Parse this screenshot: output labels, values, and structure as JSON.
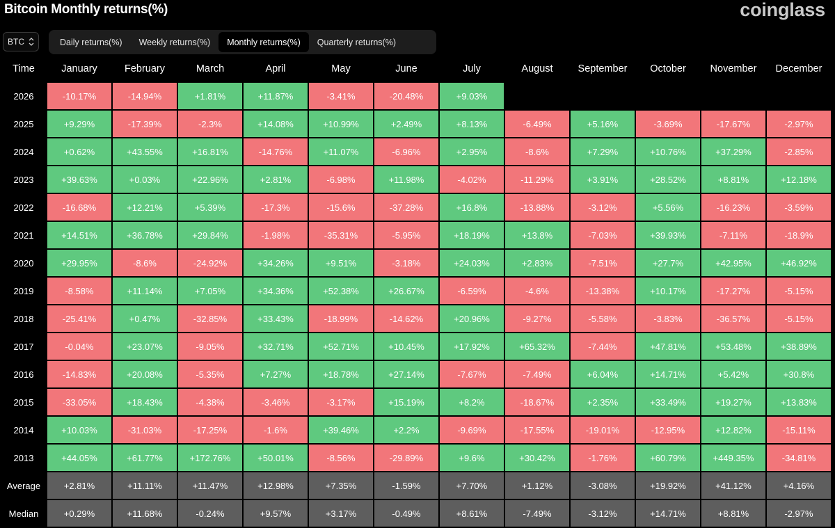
{
  "header": {
    "title": "Bitcoin Monthly returns(%)",
    "brand": "coinglass"
  },
  "asset_selector": {
    "value": "BTC"
  },
  "tabs": [
    {
      "label": "Daily returns(%)",
      "active": false
    },
    {
      "label": "Weekly returns(%)",
      "active": false
    },
    {
      "label": "Monthly returns(%)",
      "active": true
    },
    {
      "label": "Quarterly returns(%)",
      "active": false
    }
  ],
  "colors": {
    "positive": "#5fc97f",
    "negative": "#f2767a",
    "summary": "#5e5e5e"
  },
  "table": {
    "columns": [
      "Time",
      "January",
      "February",
      "March",
      "April",
      "May",
      "June",
      "July",
      "August",
      "September",
      "October",
      "November",
      "December"
    ],
    "rows": [
      {
        "year": "2026",
        "values": [
          "-10.17%",
          "-14.94%",
          "+1.81%",
          "+11.87%",
          "-3.41%",
          "-20.48%",
          "+9.03%",
          "",
          "",
          "",
          "",
          ""
        ]
      },
      {
        "year": "2025",
        "values": [
          "+9.29%",
          "-17.39%",
          "-2.3%",
          "+14.08%",
          "+10.99%",
          "+2.49%",
          "+8.13%",
          "-6.49%",
          "+5.16%",
          "-3.69%",
          "-17.67%",
          "-2.97%"
        ]
      },
      {
        "year": "2024",
        "values": [
          "+0.62%",
          "+43.55%",
          "+16.81%",
          "-14.76%",
          "+11.07%",
          "-6.96%",
          "+2.95%",
          "-8.6%",
          "+7.29%",
          "+10.76%",
          "+37.29%",
          "-2.85%"
        ]
      },
      {
        "year": "2023",
        "values": [
          "+39.63%",
          "+0.03%",
          "+22.96%",
          "+2.81%",
          "-6.98%",
          "+11.98%",
          "-4.02%",
          "-11.29%",
          "+3.91%",
          "+28.52%",
          "+8.81%",
          "+12.18%"
        ]
      },
      {
        "year": "2022",
        "values": [
          "-16.68%",
          "+12.21%",
          "+5.39%",
          "-17.3%",
          "-15.6%",
          "-37.28%",
          "+16.8%",
          "-13.88%",
          "-3.12%",
          "+5.56%",
          "-16.23%",
          "-3.59%"
        ]
      },
      {
        "year": "2021",
        "values": [
          "+14.51%",
          "+36.78%",
          "+29.84%",
          "-1.98%",
          "-35.31%",
          "-5.95%",
          "+18.19%",
          "+13.8%",
          "-7.03%",
          "+39.93%",
          "-7.11%",
          "-18.9%"
        ]
      },
      {
        "year": "2020",
        "values": [
          "+29.95%",
          "-8.6%",
          "-24.92%",
          "+34.26%",
          "+9.51%",
          "-3.18%",
          "+24.03%",
          "+2.83%",
          "-7.51%",
          "+27.7%",
          "+42.95%",
          "+46.92%"
        ]
      },
      {
        "year": "2019",
        "values": [
          "-8.58%",
          "+11.14%",
          "+7.05%",
          "+34.36%",
          "+52.38%",
          "+26.67%",
          "-6.59%",
          "-4.6%",
          "-13.38%",
          "+10.17%",
          "-17.27%",
          "-5.15%"
        ]
      },
      {
        "year": "2018",
        "values": [
          "-25.41%",
          "+0.47%",
          "-32.85%",
          "+33.43%",
          "-18.99%",
          "-14.62%",
          "+20.96%",
          "-9.27%",
          "-5.58%",
          "-3.83%",
          "-36.57%",
          "-5.15%"
        ]
      },
      {
        "year": "2017",
        "values": [
          "-0.04%",
          "+23.07%",
          "-9.05%",
          "+32.71%",
          "+52.71%",
          "+10.45%",
          "+17.92%",
          "+65.32%",
          "-7.44%",
          "+47.81%",
          "+53.48%",
          "+38.89%"
        ]
      },
      {
        "year": "2016",
        "values": [
          "-14.83%",
          "+20.08%",
          "-5.35%",
          "+7.27%",
          "+18.78%",
          "+27.14%",
          "-7.67%",
          "-7.49%",
          "+6.04%",
          "+14.71%",
          "+5.42%",
          "+30.8%"
        ]
      },
      {
        "year": "2015",
        "values": [
          "-33.05%",
          "+18.43%",
          "-4.38%",
          "-3.46%",
          "-3.17%",
          "+15.19%",
          "+8.2%",
          "-18.67%",
          "+2.35%",
          "+33.49%",
          "+19.27%",
          "+13.83%"
        ]
      },
      {
        "year": "2014",
        "values": [
          "+10.03%",
          "-31.03%",
          "-17.25%",
          "-1.6%",
          "+39.46%",
          "+2.2%",
          "-9.69%",
          "-17.55%",
          "-19.01%",
          "-12.95%",
          "+12.82%",
          "-15.11%"
        ]
      },
      {
        "year": "2013",
        "values": [
          "+44.05%",
          "+61.77%",
          "+172.76%",
          "+50.01%",
          "-8.56%",
          "-29.89%",
          "+9.6%",
          "+30.42%",
          "-1.76%",
          "+60.79%",
          "+449.35%",
          "-34.81%"
        ]
      }
    ],
    "summary": [
      {
        "label": "Average",
        "values": [
          "+2.81%",
          "+11.11%",
          "+11.47%",
          "+12.98%",
          "+7.35%",
          "-1.59%",
          "+7.70%",
          "+1.12%",
          "-3.08%",
          "+19.92%",
          "+41.12%",
          "+4.16%"
        ]
      },
      {
        "label": "Median",
        "values": [
          "+0.29%",
          "+11.68%",
          "-0.24%",
          "+9.57%",
          "+3.17%",
          "-0.49%",
          "+8.61%",
          "-7.49%",
          "-3.12%",
          "+14.71%",
          "+8.81%",
          "-2.97%"
        ]
      }
    ]
  }
}
